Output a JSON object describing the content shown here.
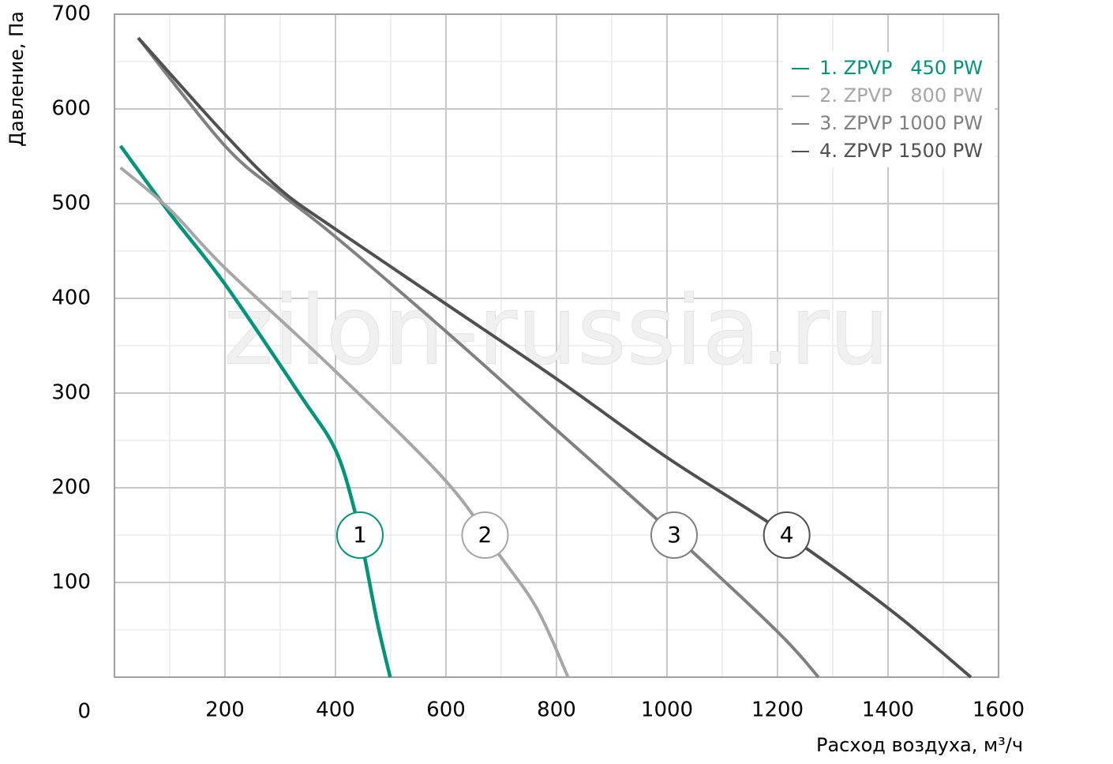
{
  "chart_data": {
    "type": "line",
    "x_label": "Расход воздуха, м³/ч",
    "y_label": "Давление, Па",
    "watermark": "zilon-russia.ru",
    "xlim": [
      0,
      1600
    ],
    "ylim": [
      0,
      700
    ],
    "xticks": [
      200,
      400,
      600,
      800,
      1000,
      1200,
      1400,
      1600
    ],
    "yticks": [
      0,
      100,
      200,
      300,
      400,
      500,
      600,
      700
    ],
    "xminorticks": [
      100,
      300,
      500,
      700,
      900,
      1100,
      1300,
      1500
    ],
    "yminorticks": [
      50,
      150,
      250,
      350,
      450,
      550,
      650
    ],
    "grid": true,
    "legend": "upper right",
    "series": [
      {
        "name": "1. ZPVP   450 PW",
        "marker_label": "1",
        "color": "#009479",
        "x": [
          11,
          100,
          200,
          336,
          400,
          436,
          454,
          476,
          499
        ],
        "values": [
          561,
          490,
          415,
          298,
          240,
          173,
          123,
          57,
          0
        ]
      },
      {
        "name": "2. ZPVP   800 PW",
        "marker_label": "2",
        "color": "#a6a6a6",
        "x": [
          11,
          100,
          200,
          400,
          600,
          693,
          764,
          821
        ],
        "values": [
          538,
          494,
          432,
          323,
          207,
          132,
          73,
          0
        ]
      },
      {
        "name": "3. ZPVP 1000 PW",
        "marker_label": "3",
        "color": "#808080",
        "x": [
          43,
          200,
          300,
          400,
          600,
          800,
          1000,
          1200,
          1274
        ],
        "values": [
          675,
          561,
          511,
          465,
          365,
          261,
          157,
          48,
          0
        ]
      },
      {
        "name": "4. ZPVP 1500 PW",
        "marker_label": "4",
        "color": "#505050",
        "x": [
          43,
          200,
          300,
          400,
          600,
          800,
          1000,
          1200,
          1400,
          1550
        ],
        "values": [
          675,
          573,
          515,
          473,
          394,
          315,
          232,
          157,
          73,
          0
        ]
      }
    ]
  }
}
